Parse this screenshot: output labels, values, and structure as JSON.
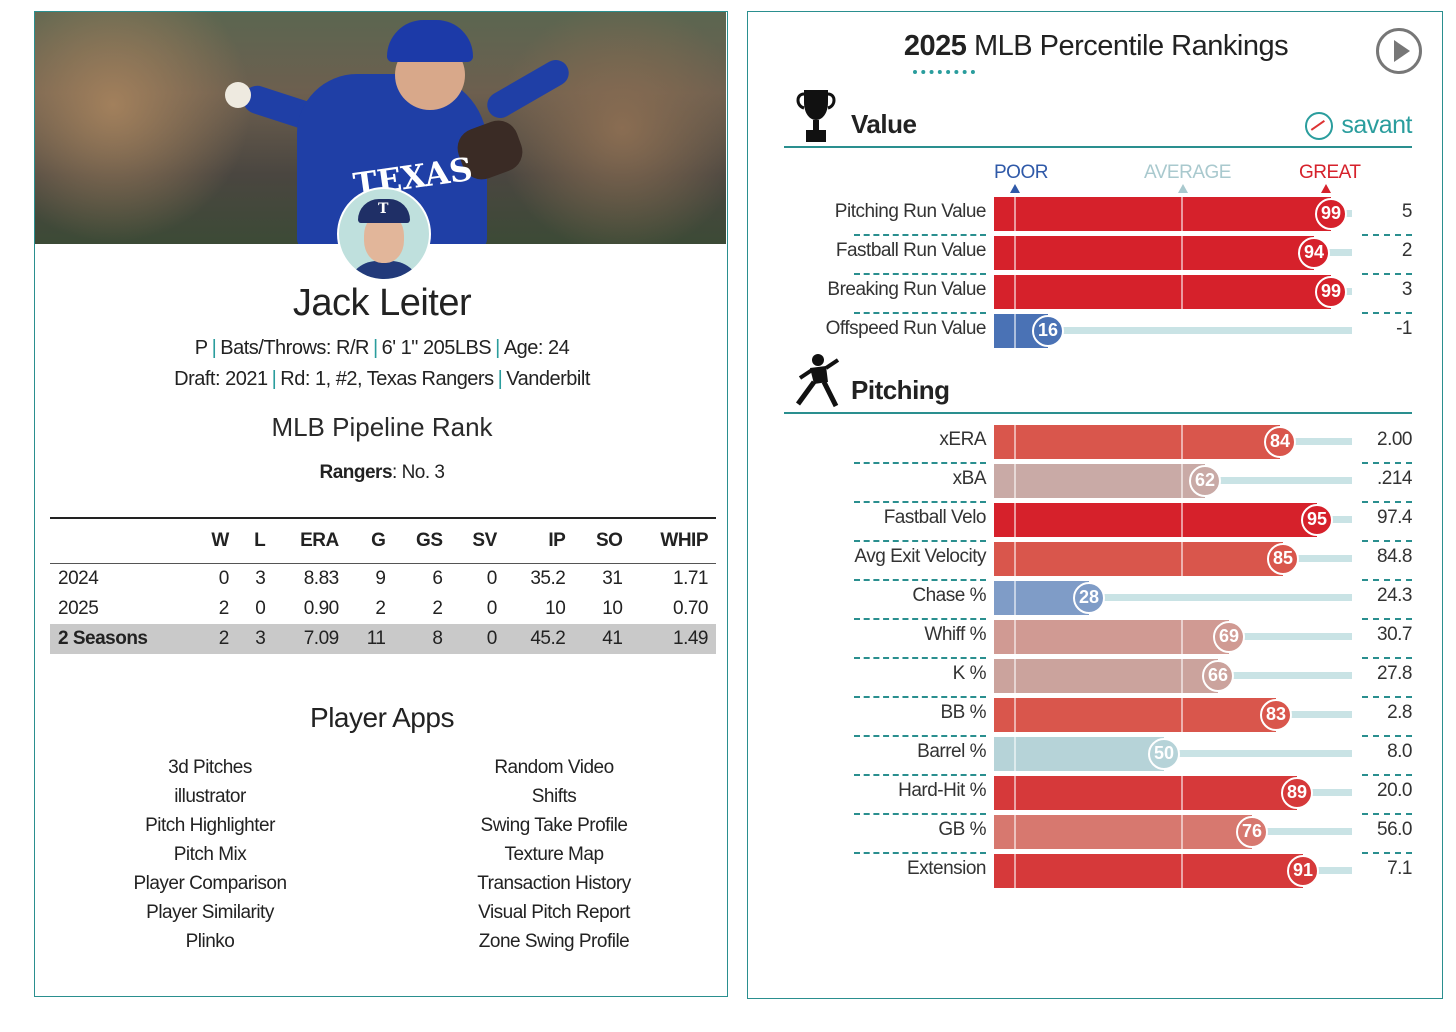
{
  "player": {
    "name": "Jack Leiter",
    "position": "P",
    "bats_throws": "Bats/Throws: R/R",
    "height_weight": "6' 1\" 205LBS",
    "age": "Age: 24",
    "draft": "Draft: 2021",
    "draft_pick": "Rd: 1, #2, Texas Rangers",
    "college": "Vanderbilt",
    "jersey_text": "TEXAS",
    "cap_letter": "T"
  },
  "pipeline": {
    "title": "MLB Pipeline Rank",
    "team": "Rangers",
    "rank": ": No. 3"
  },
  "stats": {
    "headers": [
      "",
      "W",
      "L",
      "ERA",
      "G",
      "GS",
      "SV",
      "IP",
      "SO",
      "WHIP"
    ],
    "rows": [
      [
        "2024",
        "0",
        "3",
        "8.83",
        "9",
        "6",
        "0",
        "35.2",
        "31",
        "1.71"
      ],
      [
        "2025",
        "2",
        "0",
        "0.90",
        "2",
        "2",
        "0",
        "10",
        "10",
        "0.70"
      ],
      [
        "2 Seasons",
        "2",
        "3",
        "7.09",
        "11",
        "8",
        "0",
        "45.2",
        "41",
        "1.49"
      ]
    ]
  },
  "apps": {
    "title": "Player Apps",
    "col1": [
      "3d Pitches",
      "illustrator",
      "Pitch Highlighter",
      "Pitch Mix",
      "Player Comparison",
      "Player Similarity",
      "Plinko"
    ],
    "col2": [
      "Random Video",
      "Shifts",
      "Swing Take Profile",
      "Texture Map",
      "Transaction History",
      "Visual Pitch Report",
      "Zone Swing Profile"
    ]
  },
  "rankings": {
    "title_year": "2025",
    "title_rest": "MLB Percentile Rankings",
    "brand": "savant",
    "scale": {
      "poor": "POOR",
      "average": "AVERAGE",
      "great": "GREAT"
    },
    "colors": {
      "accent": "#2a8f8f",
      "great": "#d8232a",
      "poor": "#3a63a8",
      "neutral": "#b9d6db"
    },
    "value_section": {
      "title": "Value",
      "icon": "trophy-icon",
      "metrics": [
        {
          "name": "Pitching Run Value",
          "percentile": 99,
          "value": "5",
          "color": "#d6212b"
        },
        {
          "name": "Fastball Run Value",
          "percentile": 94,
          "value": "2",
          "color": "#d6212b"
        },
        {
          "name": "Breaking Run Value",
          "percentile": 99,
          "value": "3",
          "color": "#d6212b"
        },
        {
          "name": "Offspeed Run Value",
          "percentile": 16,
          "value": "-1",
          "color": "#4a72b5"
        }
      ]
    },
    "pitching_section": {
      "title": "Pitching",
      "icon": "pitcher-icon",
      "metrics": [
        {
          "name": "xERA",
          "percentile": 84,
          "value": "2.00",
          "color": "#d9564c"
        },
        {
          "name": "xBA",
          "percentile": 62,
          "value": ".214",
          "color": "#c9aaa6"
        },
        {
          "name": "Fastball Velo",
          "percentile": 95,
          "value": "97.4",
          "color": "#d6212b"
        },
        {
          "name": "Avg Exit Velocity",
          "percentile": 85,
          "value": "84.8",
          "color": "#d9564c"
        },
        {
          "name": "Chase %",
          "percentile": 28,
          "value": "24.3",
          "color": "#7f9cc7"
        },
        {
          "name": "Whiff %",
          "percentile": 69,
          "value": "30.7",
          "color": "#d09a93"
        },
        {
          "name": "K %",
          "percentile": 66,
          "value": "27.8",
          "color": "#cba39d"
        },
        {
          "name": "BB %",
          "percentile": 83,
          "value": "2.8",
          "color": "#d9564c"
        },
        {
          "name": "Barrel %",
          "percentile": 50,
          "value": "8.0",
          "color": "#b6d3d8"
        },
        {
          "name": "Hard-Hit %",
          "percentile": 89,
          "value": "20.0",
          "color": "#d6393a"
        },
        {
          "name": "GB %",
          "percentile": 76,
          "value": "56.0",
          "color": "#d7786f"
        },
        {
          "name": "Extension",
          "percentile": 91,
          "value": "7.1",
          "color": "#d6393a"
        }
      ]
    }
  }
}
